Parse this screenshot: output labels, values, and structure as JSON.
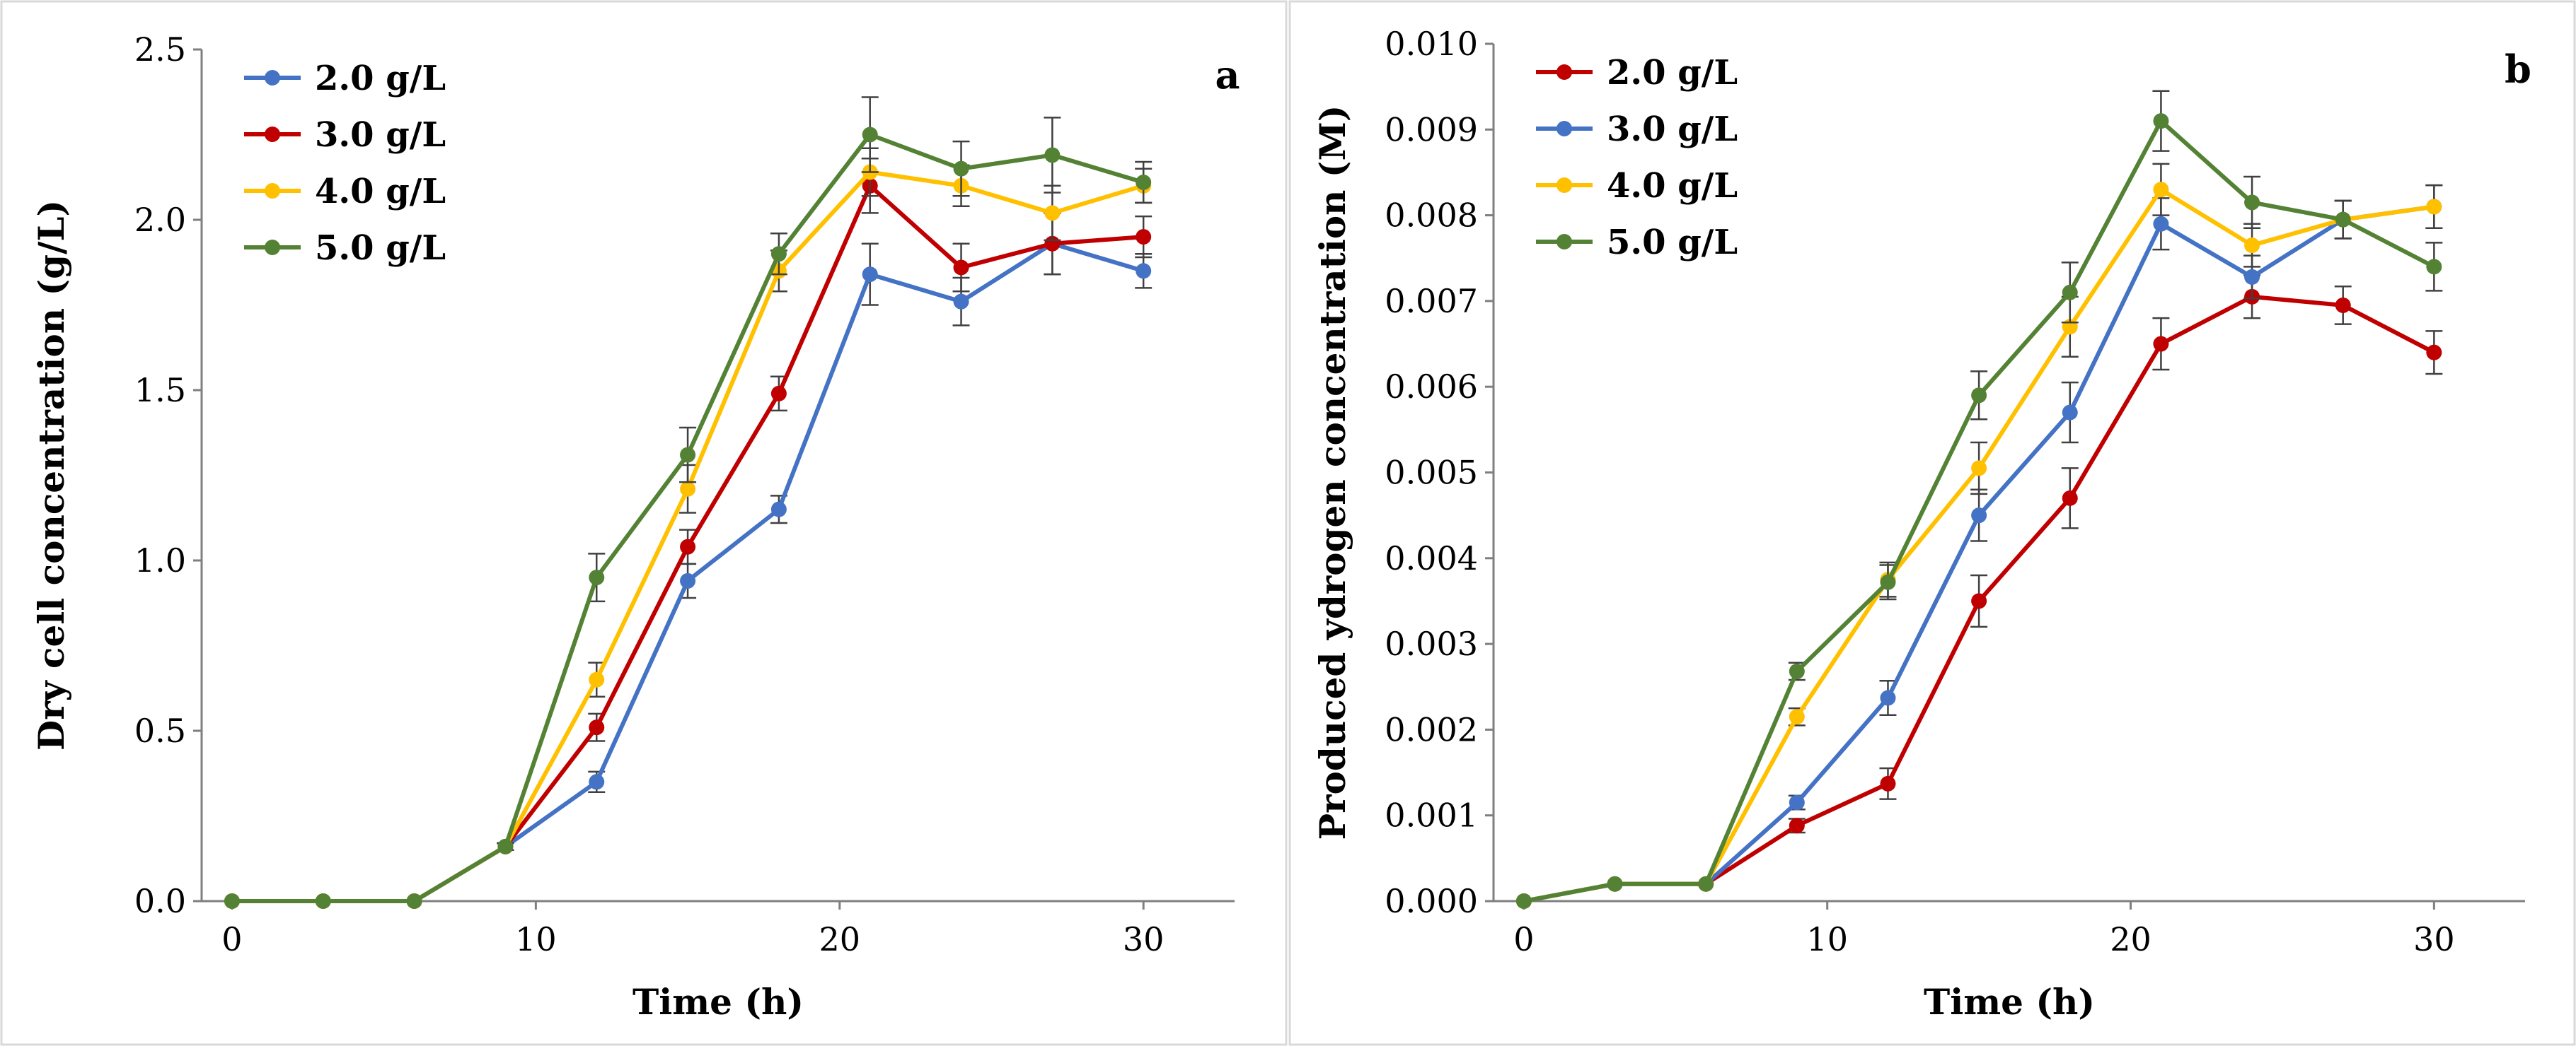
{
  "chart_data": [
    {
      "type": "line",
      "panel_label": "a",
      "xlabel": "Time (h)",
      "ylabel": "Dry cell concentration (g/L)",
      "xlim": [
        -1,
        33
      ],
      "ylim": [
        0,
        2.5
      ],
      "x_ticks": [
        "0",
        "10",
        "20",
        "30"
      ],
      "y_ticks": [
        "0.0",
        "0.5",
        "1.0",
        "1.5",
        "2.0",
        "2.5"
      ],
      "legend_position": "top-left",
      "x": [
        0,
        3,
        6,
        9,
        12,
        15,
        18,
        21,
        24,
        27,
        30
      ],
      "series": [
        {
          "name": "2.0 g/L",
          "color": "#4472c4",
          "values": [
            0,
            0,
            0,
            0.16,
            0.35,
            0.94,
            1.15,
            1.84,
            1.76,
            1.93,
            1.85
          ],
          "errors": [
            0,
            0,
            0,
            0.01,
            0.03,
            0.05,
            0.04,
            0.09,
            0.07,
            0.09,
            0.05
          ]
        },
        {
          "name": "3.0 g/L",
          "color": "#c00000",
          "values": [
            0,
            0,
            0,
            0.16,
            0.51,
            1.04,
            1.49,
            2.1,
            1.86,
            1.93,
            1.95
          ],
          "errors": [
            0,
            0,
            0,
            0.01,
            0.04,
            0.05,
            0.05,
            0.08,
            0.07,
            0.09,
            0.06
          ]
        },
        {
          "name": "4.0 g/L",
          "color": "#ffc000",
          "values": [
            0,
            0,
            0,
            0.16,
            0.65,
            1.21,
            1.85,
            2.14,
            2.1,
            2.02,
            2.1
          ],
          "errors": [
            0,
            0,
            0,
            0.01,
            0.05,
            0.07,
            0.06,
            0.07,
            0.06,
            0.08,
            0.05
          ]
        },
        {
          "name": "5.0 g/L",
          "color": "#548235",
          "values": [
            0,
            0,
            0,
            0.16,
            0.95,
            1.31,
            1.9,
            2.25,
            2.15,
            2.19,
            2.11
          ],
          "errors": [
            0,
            0,
            0,
            0.01,
            0.07,
            0.08,
            0.06,
            0.11,
            0.08,
            0.11,
            0.06
          ]
        }
      ]
    },
    {
      "type": "line",
      "panel_label": "b",
      "xlabel": "Time (h)",
      "ylabel": "Produced ydrogen concentration (M)",
      "xlim": [
        -1,
        33
      ],
      "ylim": [
        0,
        0.01
      ],
      "x_ticks": [
        "0",
        "10",
        "20",
        "30"
      ],
      "y_ticks": [
        "0.000",
        "0.001",
        "0.002",
        "0.003",
        "0.004",
        "0.005",
        "0.006",
        "0.007",
        "0.008",
        "0.009",
        "0.010"
      ],
      "legend_position": "top-left",
      "x": [
        0,
        3,
        6,
        9,
        12,
        15,
        18,
        21,
        24,
        27,
        30
      ],
      "series": [
        {
          "name": "2.0 g/L",
          "color": "#c00000",
          "values": [
            0,
            0.0002,
            0.0002,
            0.00088,
            0.00137,
            0.0035,
            0.0047,
            0.0065,
            0.00705,
            0.00695,
            0.0064
          ],
          "errors": [
            0,
            0,
            0,
            8e-05,
            0.00018,
            0.0003,
            0.00035,
            0.0003,
            0.00025,
            0.00022,
            0.00025
          ]
        },
        {
          "name": "3.0 g/L",
          "color": "#4472c4",
          "values": [
            0,
            0.0002,
            0.0002,
            0.00115,
            0.00237,
            0.0045,
            0.0057,
            0.0079,
            0.00728,
            0.00795,
            0.0081
          ],
          "errors": [
            0,
            0,
            0,
            8e-05,
            0.0002,
            0.0003,
            0.00035,
            0.0003,
            0.00025,
            0.00022,
            0.00025
          ]
        },
        {
          "name": "4.0 g/L",
          "color": "#ffc000",
          "values": [
            0,
            0.0002,
            0.0002,
            0.00215,
            0.00375,
            0.00505,
            0.0067,
            0.0083,
            0.00765,
            0.00795,
            0.0081
          ],
          "errors": [
            0,
            0,
            0,
            0.0001,
            0.0002,
            0.0003,
            0.00035,
            0.0003,
            0.00025,
            0.00022,
            0.00025
          ]
        },
        {
          "name": "5.0 g/L",
          "color": "#548235",
          "values": [
            0,
            0.0002,
            0.0002,
            0.00268,
            0.00372,
            0.0059,
            0.0071,
            0.0091,
            0.00815,
            0.00795,
            0.0074
          ],
          "errors": [
            0,
            0,
            0,
            0.0001,
            0.0002,
            0.00028,
            0.00035,
            0.00035,
            0.0003,
            0.00022,
            0.00028
          ]
        }
      ]
    }
  ]
}
